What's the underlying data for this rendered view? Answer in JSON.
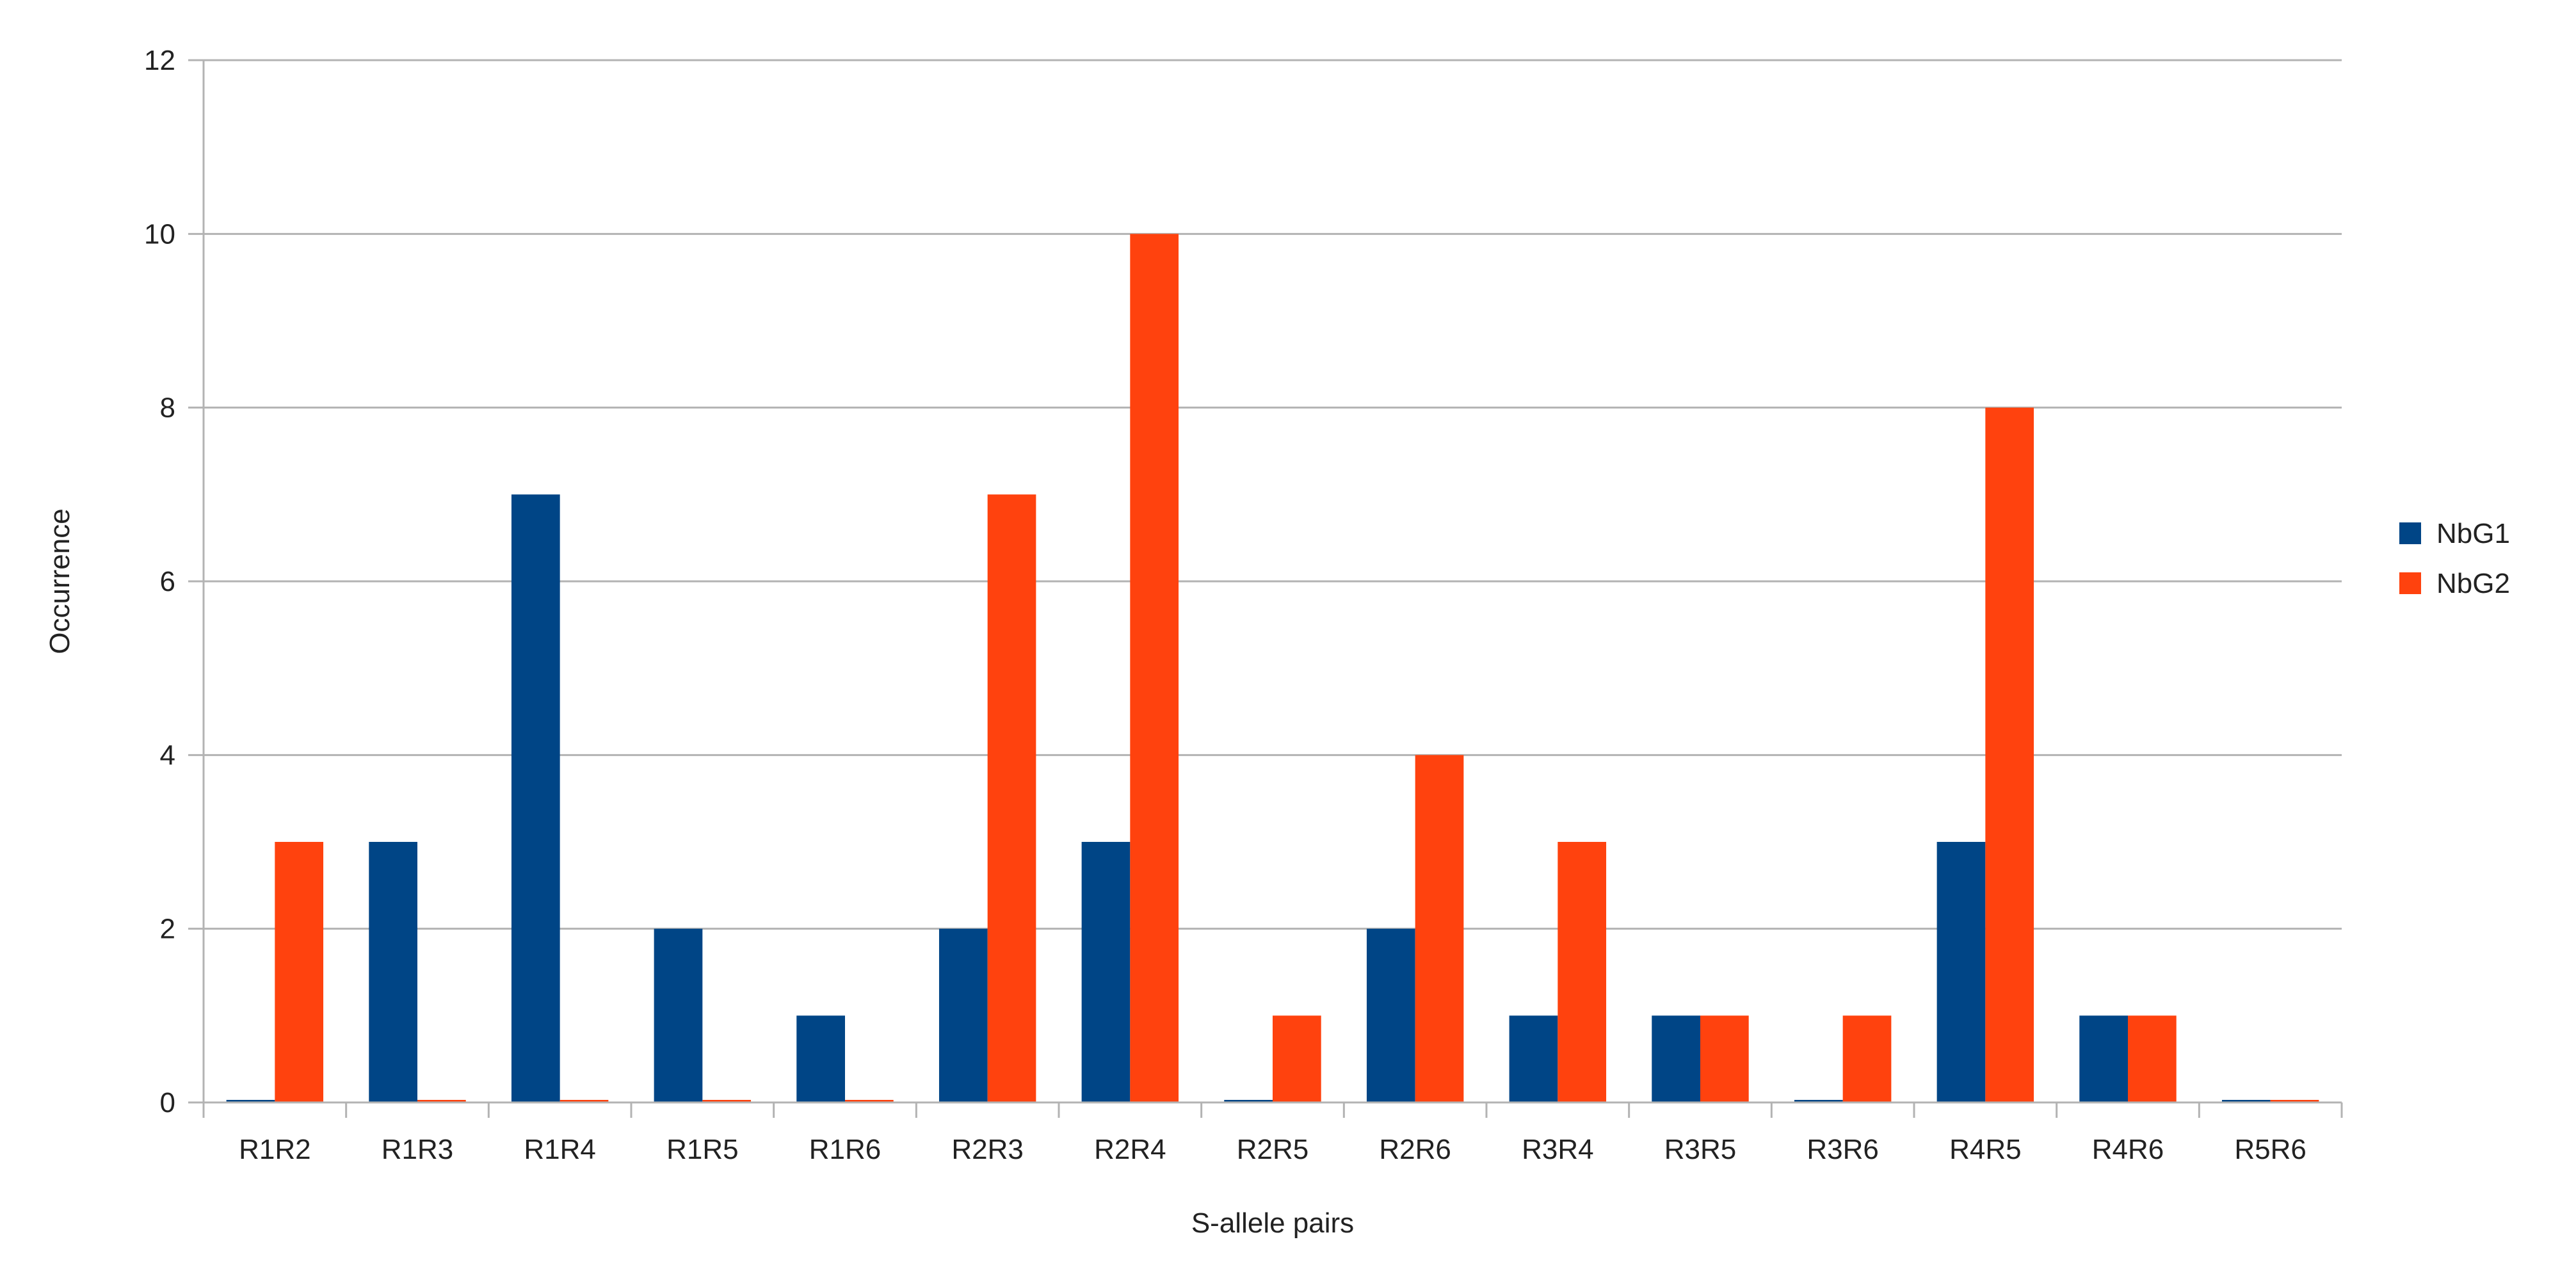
{
  "chart_data": {
    "type": "bar",
    "xlabel": "S-allele pairs",
    "ylabel": "Occurrence",
    "ylim": [
      0,
      12
    ],
    "yticks": [
      0,
      2,
      4,
      6,
      8,
      10,
      12
    ],
    "grid": true,
    "legend_position": "right",
    "categories": [
      "R1R2",
      "R1R3",
      "R1R4",
      "R1R5",
      "R1R6",
      "R2R3",
      "R2R4",
      "R2R5",
      "R2R6",
      "R3R4",
      "R3R5",
      "R3R6",
      "R4R5",
      "R4R6",
      "R5R6"
    ],
    "series": [
      {
        "name": "NbG1",
        "color": "#004586",
        "values": [
          0,
          3,
          7,
          2,
          1,
          2,
          3,
          0,
          2,
          1,
          1,
          0,
          3,
          1,
          0
        ]
      },
      {
        "name": "NbG2",
        "color": "#ff420e",
        "values": [
          3,
          0,
          0,
          0,
          0,
          7,
          10,
          1,
          4,
          3,
          1,
          1,
          8,
          1,
          0
        ]
      }
    ]
  }
}
